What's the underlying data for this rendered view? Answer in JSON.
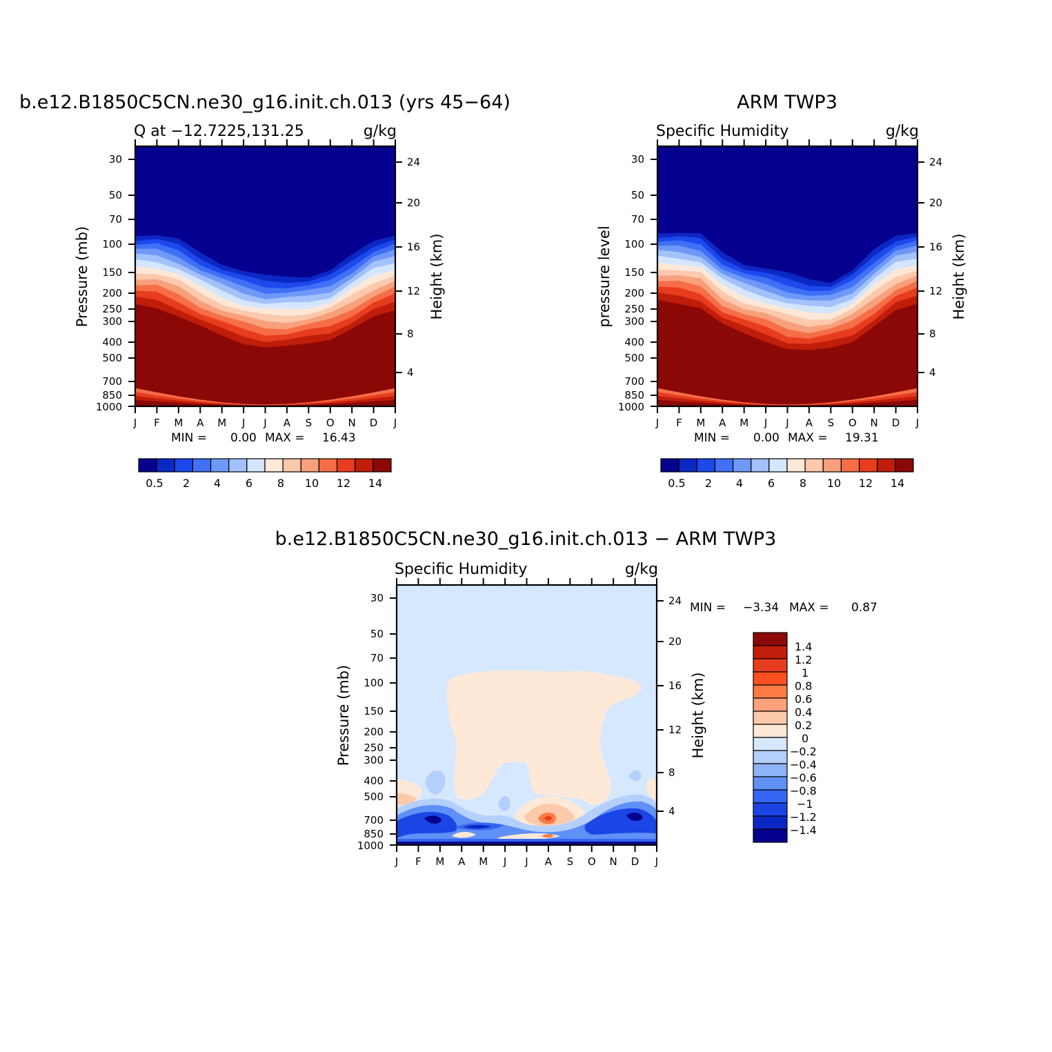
{
  "chart_data": [
    {
      "type": "heatmap",
      "title": "b.e12.B1850C5CN.ne30_g16.init.ch.013 (yrs 45−64)",
      "subtitle_left": "Q at −12.7225,131.25",
      "units": "g/kg",
      "ylabel": "Pressure (mb)",
      "ylabel_right": "Height (km)",
      "x_ticks": [
        "J",
        "F",
        "M",
        "A",
        "M",
        "J",
        "J",
        "A",
        "S",
        "O",
        "N",
        "D",
        "J"
      ],
      "y_ticks": [
        "30",
        "50",
        "70",
        "100",
        "150",
        "200",
        "250",
        "300",
        "400",
        "500",
        "700",
        "850",
        "1000"
      ],
      "y_ticks_right": [
        "24",
        "20",
        "16",
        "12",
        "8",
        "4"
      ],
      "min_label": "MIN =",
      "min_value": "0.00",
      "max_label": "MAX =",
      "max_value": "16.43",
      "colorbar_ticks": [
        "0.5",
        "2",
        "4",
        "6",
        "8",
        "10",
        "12",
        "14"
      ],
      "colorbar_colors": [
        "#05008e",
        "#0c28c4",
        "#1d48ec",
        "#3f70f5",
        "#6f98f8",
        "#a3c1fb",
        "#d4e6fd",
        "#fde8d8",
        "#fcc9ad",
        "#f8a07c",
        "#f56e48",
        "#e83c1e",
        "#c01e0a",
        "#8b0807"
      ],
      "contour_fronts": [
        [
          0.34,
          0.34,
          0.36,
          0.41,
          0.45,
          0.48,
          0.5,
          0.5,
          0.5,
          0.48,
          0.42,
          0.36,
          0.34
        ],
        [
          0.57,
          0.58,
          0.62,
          0.67,
          0.71,
          0.74,
          0.76,
          0.76,
          0.74,
          0.72,
          0.68,
          0.63,
          0.59
        ]
      ]
    },
    {
      "type": "heatmap",
      "title": "ARM TWP3",
      "subtitle_left": "Specific Humidity",
      "units": "g/kg",
      "ylabel": "pressure level",
      "ylabel_right": "Height (km)",
      "x_ticks": [
        "J",
        "F",
        "M",
        "A",
        "M",
        "J",
        "J",
        "A",
        "S",
        "O",
        "N",
        "D",
        "J"
      ],
      "y_ticks": [
        "30",
        "50",
        "70",
        "100",
        "150",
        "200",
        "250",
        "300",
        "400",
        "500",
        "700",
        "850",
        "1000"
      ],
      "y_ticks_right": [
        "24",
        "20",
        "16",
        "12",
        "8",
        "4"
      ],
      "min_label": "MIN =",
      "min_value": "0.00",
      "max_label": "MAX =",
      "max_value": "19.31",
      "colorbar_ticks": [
        "0.5",
        "2",
        "4",
        "6",
        "8",
        "10",
        "12",
        "14"
      ],
      "colorbar_colors": [
        "#05008e",
        "#0c28c4",
        "#1d48ec",
        "#3f70f5",
        "#6f98f8",
        "#a3c1fb",
        "#d4e6fd",
        "#fde8d8",
        "#fcc9ad",
        "#f8a07c",
        "#f56e48",
        "#e83c1e",
        "#c01e0a",
        "#8b0807"
      ],
      "contour_fronts": [
        [
          0.33,
          0.33,
          0.34,
          0.41,
          0.45,
          0.47,
          0.49,
          0.51,
          0.52,
          0.48,
          0.4,
          0.34,
          0.33
        ],
        [
          0.55,
          0.56,
          0.58,
          0.66,
          0.7,
          0.73,
          0.77,
          0.78,
          0.76,
          0.73,
          0.67,
          0.6,
          0.56
        ]
      ]
    },
    {
      "type": "heatmap",
      "title": "b.e12.B1850C5CN.ne30_g16.init.ch.013 − ARM TWP3",
      "subtitle_left": "Specific Humidity",
      "units": "g/kg",
      "ylabel": "Pressure (mb)",
      "ylabel_right": "Height (km)",
      "x_ticks": [
        "J",
        "F",
        "M",
        "A",
        "M",
        "J",
        "J",
        "A",
        "S",
        "O",
        "N",
        "D",
        "J"
      ],
      "y_ticks": [
        "30",
        "50",
        "70",
        "100",
        "150",
        "200",
        "250",
        "300",
        "400",
        "500",
        "700",
        "850",
        "1000"
      ],
      "y_ticks_right": [
        "24",
        "20",
        "16",
        "12",
        "8",
        "4"
      ],
      "min_label": "MIN =",
      "min_value": "−3.34",
      "max_label": "MAX =",
      "max_value": "0.87",
      "colorbar_ticks": [
        "1.4",
        "1.2",
        "1",
        "0.8",
        "0.6",
        "0.4",
        "0.2",
        "0",
        "−0.2",
        "−0.4",
        "−0.6",
        "−0.8",
        "−1",
        "−1.2",
        "−1.4"
      ],
      "colorbar_colors": [
        "#8b0807",
        "#c01e0a",
        "#e83c1e",
        "#fd5220",
        "#fd7a45",
        "#fca17b",
        "#fcc9ab",
        "#fee8d8",
        "#d6e8fd",
        "#b4cffc",
        "#8db3f9",
        "#5f90f6",
        "#3466f3",
        "#1b45e4",
        "#0c28c4",
        "#05008e"
      ]
    }
  ]
}
